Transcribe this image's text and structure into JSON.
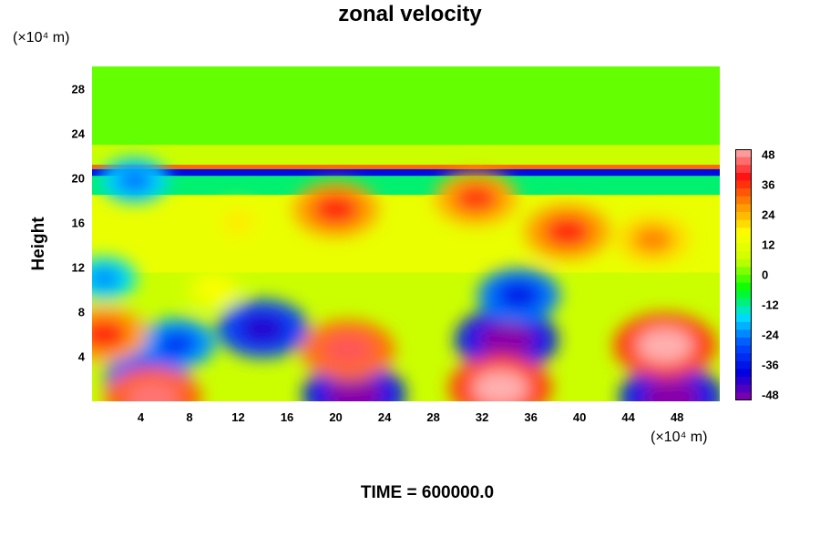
{
  "chart_data": {
    "type": "heatmap",
    "title": "zonal velocity",
    "xlabel": "",
    "ylabel": "Height",
    "x_unit": "(×10⁴ m)",
    "y_unit": "(×10⁴ m)",
    "footer": "TIME = 600000.0",
    "x_ticks": [
      4,
      8,
      12,
      16,
      20,
      24,
      28,
      32,
      36,
      40,
      44,
      48
    ],
    "y_ticks": [
      4,
      8,
      12,
      16,
      20,
      24,
      28
    ],
    "xlim": [
      0,
      51.5
    ],
    "ylim": [
      0,
      30
    ],
    "colorbar": {
      "min": -48,
      "max": 48,
      "labels": [
        48,
        36,
        24,
        12,
        0,
        -12,
        -24,
        -36,
        -48
      ]
    },
    "colors": {
      "background": "#00ff00",
      "scale": [
        "#8a00a8",
        "#0000e0",
        "#0050ff",
        "#00e0ff",
        "#00ff00",
        "#c8ff00",
        "#ffff00",
        "#ff9000",
        "#ff1010",
        "#ffb0b0"
      ]
    },
    "features": [
      {
        "x": 14,
        "y": 6.5,
        "value": -40
      },
      {
        "x": 7,
        "y": 5.2,
        "value": -30
      },
      {
        "x": 4.5,
        "y": 2,
        "value": -36
      },
      {
        "x": 21.5,
        "y": 0.6,
        "value": -48
      },
      {
        "x": 34,
        "y": 5.5,
        "value": -48
      },
      {
        "x": 35,
        "y": 9.5,
        "value": -34
      },
      {
        "x": 47.5,
        "y": 0.4,
        "value": -48
      },
      {
        "x": 1,
        "y": 11,
        "value": -22
      },
      {
        "x": 3.5,
        "y": 19.8,
        "value": -24
      },
      {
        "x": 21,
        "y": 4.6,
        "value": 42
      },
      {
        "x": 33.5,
        "y": 1.2,
        "value": 48
      },
      {
        "x": 47,
        "y": 5,
        "value": 48
      },
      {
        "x": 1,
        "y": 6,
        "value": 36
      },
      {
        "x": 5,
        "y": 0.3,
        "value": 44
      },
      {
        "x": 20,
        "y": 17.2,
        "value": 36
      },
      {
        "x": 31.5,
        "y": 18.2,
        "value": 34
      },
      {
        "x": 39,
        "y": 15.2,
        "value": 36
      },
      {
        "x": 46,
        "y": 14.5,
        "value": 28
      },
      {
        "x": 12,
        "y": 16,
        "value": 18
      },
      {
        "x": 10,
        "y": 10,
        "value": 16
      }
    ]
  }
}
